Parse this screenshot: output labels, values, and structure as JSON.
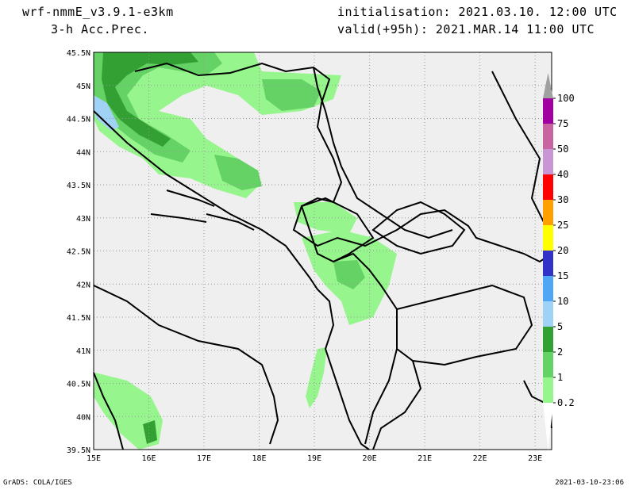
{
  "header": {
    "model": "wrf-nmmE_v3.9.1-e3km",
    "field": "3-h Acc.Prec.",
    "initialisation": "initialisation: 2021.03.10.  12:00 UTC",
    "valid": "valid(+95h): 2021.MAR.14 11:00 UTC"
  },
  "footer": {
    "left": "GrADS: COLA/IGES",
    "right": "2021-03-10-23:06"
  },
  "map": {
    "lon_range": [
      15,
      23.3
    ],
    "lat_range": [
      39.5,
      45.5
    ],
    "lon_ticks": [
      "15E",
      "16E",
      "17E",
      "18E",
      "19E",
      "20E",
      "21E",
      "22E",
      "23E"
    ],
    "lat_ticks": [
      "39.5N",
      "40N",
      "40.5N",
      "41N",
      "41.5N",
      "42N",
      "42.5N",
      "43N",
      "43.5N",
      "44N",
      "44.5N",
      "45N",
      "45.5N"
    ],
    "background": "#efefef",
    "grid": true
  },
  "colorbar": {
    "levels": [
      "0.2",
      "1",
      "2",
      "5",
      "10",
      "15",
      "20",
      "25",
      "30",
      "40",
      "50",
      "75",
      "100"
    ],
    "colors": [
      "#96f58c",
      "#64d264",
      "#32a032",
      "#a0d2f5",
      "#50a5f5",
      "#3232c8",
      "#ffff00",
      "#ffa000",
      "#ff0000",
      "#c896d2",
      "#c864a0",
      "#a000a0",
      "#a0a0a0"
    ]
  }
}
